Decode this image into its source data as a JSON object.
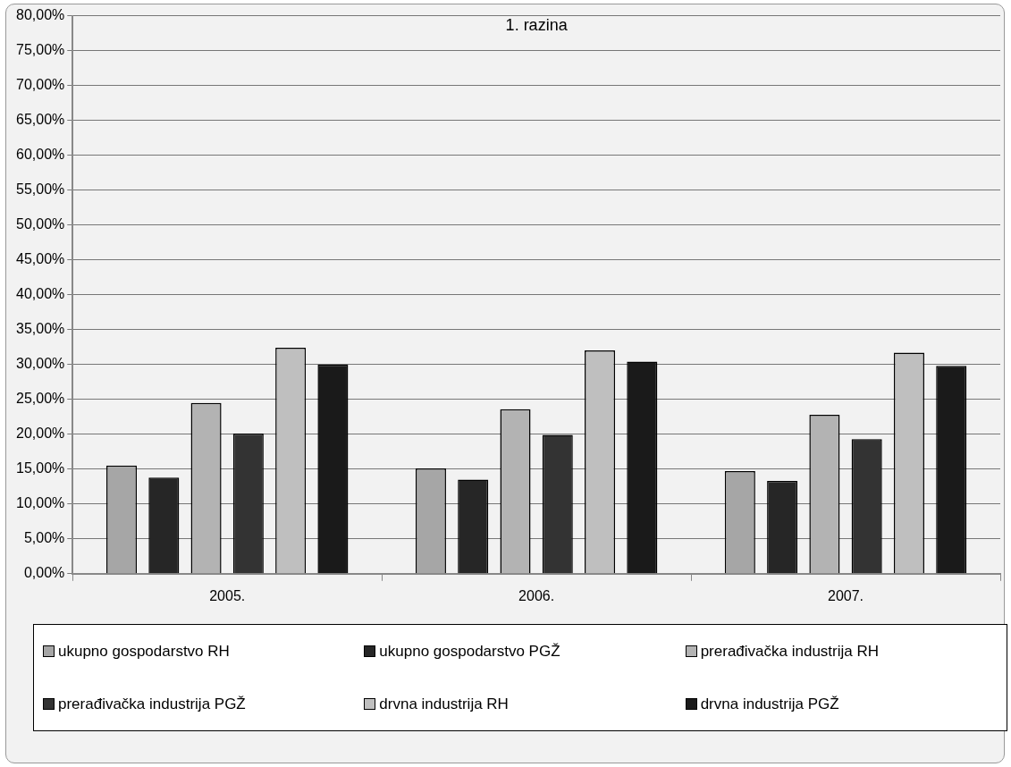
{
  "chart_data": {
    "type": "bar",
    "title": "1. razina",
    "categories": [
      "2005.",
      "2006.",
      "2007."
    ],
    "series": [
      {
        "name": "ukupno gospodarstvo RH",
        "color": "#a6a6a6",
        "values": [
          15.5,
          15.1,
          14.7
        ]
      },
      {
        "name": "ukupno gospodarstvo PGŽ",
        "color": "#262626",
        "values": [
          13.8,
          13.5,
          13.3
        ]
      },
      {
        "name": "prerađivačka industrija RH",
        "color": "#b3b3b3",
        "values": [
          24.5,
          23.6,
          22.8
        ]
      },
      {
        "name": "prerađivačka industrija PGŽ",
        "color": "#333333",
        "values": [
          20.1,
          19.9,
          19.3
        ]
      },
      {
        "name": "drvna industrija RH",
        "color": "#bfbfbf",
        "values": [
          32.4,
          32.0,
          31.7
        ]
      },
      {
        "name": "drvna industrija PGŽ",
        "color": "#1a1a1a",
        "values": [
          30.0,
          30.4,
          29.8
        ]
      }
    ],
    "ylim": [
      0,
      80
    ],
    "yticks": [
      {
        "value": 0,
        "label": "0,00%"
      },
      {
        "value": 5,
        "label": "5,00%"
      },
      {
        "value": 10,
        "label": "10,00%"
      },
      {
        "value": 15,
        "label": "15,00%"
      },
      {
        "value": 20,
        "label": "20,00%"
      },
      {
        "value": 25,
        "label": "25,00%"
      },
      {
        "value": 30,
        "label": "30,00%"
      },
      {
        "value": 35,
        "label": "35,00%"
      },
      {
        "value": 40,
        "label": "40,00%"
      },
      {
        "value": 45,
        "label": "45,00%"
      },
      {
        "value": 50,
        "label": "50,00%"
      },
      {
        "value": 55,
        "label": "55,00%"
      },
      {
        "value": 60,
        "label": "60,00%"
      },
      {
        "value": 65,
        "label": "65,00%"
      },
      {
        "value": 70,
        "label": "70,00%"
      },
      {
        "value": 75,
        "label": "75,00%"
      },
      {
        "value": 80,
        "label": "80,00%"
      }
    ],
    "grid": "y",
    "legend": "bottom"
  }
}
